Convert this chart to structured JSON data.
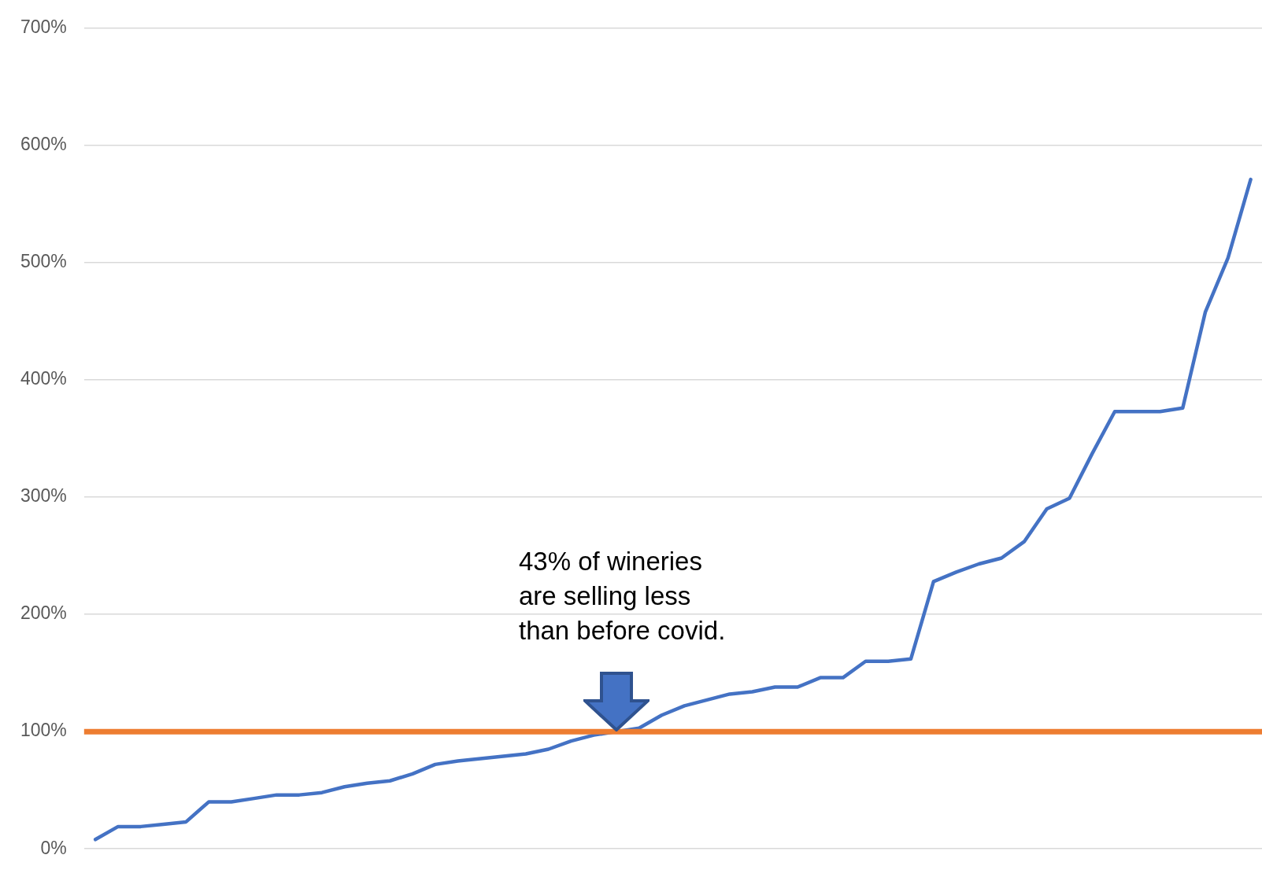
{
  "chart_data": {
    "type": "line",
    "categories": [
      null,
      null,
      null,
      null,
      null,
      null,
      null,
      null,
      null,
      null,
      null,
      null,
      null,
      null,
      null,
      null,
      null,
      null,
      null,
      null,
      null,
      null,
      null,
      null,
      null,
      null,
      null,
      null,
      null,
      null,
      null,
      null,
      null,
      null,
      null,
      null,
      null,
      null,
      null,
      null,
      null,
      null,
      null,
      null,
      null,
      null,
      null,
      null,
      null,
      null,
      null,
      null
    ],
    "series": [
      {
        "color": "#4472c4",
        "values": [
          8,
          19,
          19,
          21,
          23,
          40,
          40,
          43,
          46,
          46,
          48,
          53,
          56,
          58,
          64,
          72,
          75,
          77,
          79,
          81,
          85,
          92,
          97,
          100,
          103,
          114,
          122,
          127,
          132,
          134,
          138,
          138,
          146,
          146,
          160,
          160,
          162,
          228,
          236,
          243,
          248,
          262,
          290,
          299,
          337,
          373,
          373,
          373,
          376,
          458,
          504,
          571
        ]
      }
    ],
    "ylim": [
      0,
      700
    ],
    "yticks": [
      {
        "value": 0,
        "label": "0%"
      },
      {
        "value": 100,
        "label": "100%"
      },
      {
        "value": 200,
        "label": "200%"
      },
      {
        "value": 300,
        "label": "300%"
      },
      {
        "value": 400,
        "label": "400%"
      },
      {
        "value": 500,
        "label": "500%"
      },
      {
        "value": 600,
        "label": "600%"
      },
      {
        "value": 700,
        "label": "700%"
      }
    ],
    "grid": "y",
    "legend": false,
    "marker": "none",
    "line_style": "solid",
    "tick_labels": "y",
    "ref_lines": [
      {
        "axis": "y",
        "value": 100,
        "color": "#ed7d31"
      }
    ],
    "annotations": [
      "43% of wineries\nare selling less\nthan before covid."
    ]
  }
}
